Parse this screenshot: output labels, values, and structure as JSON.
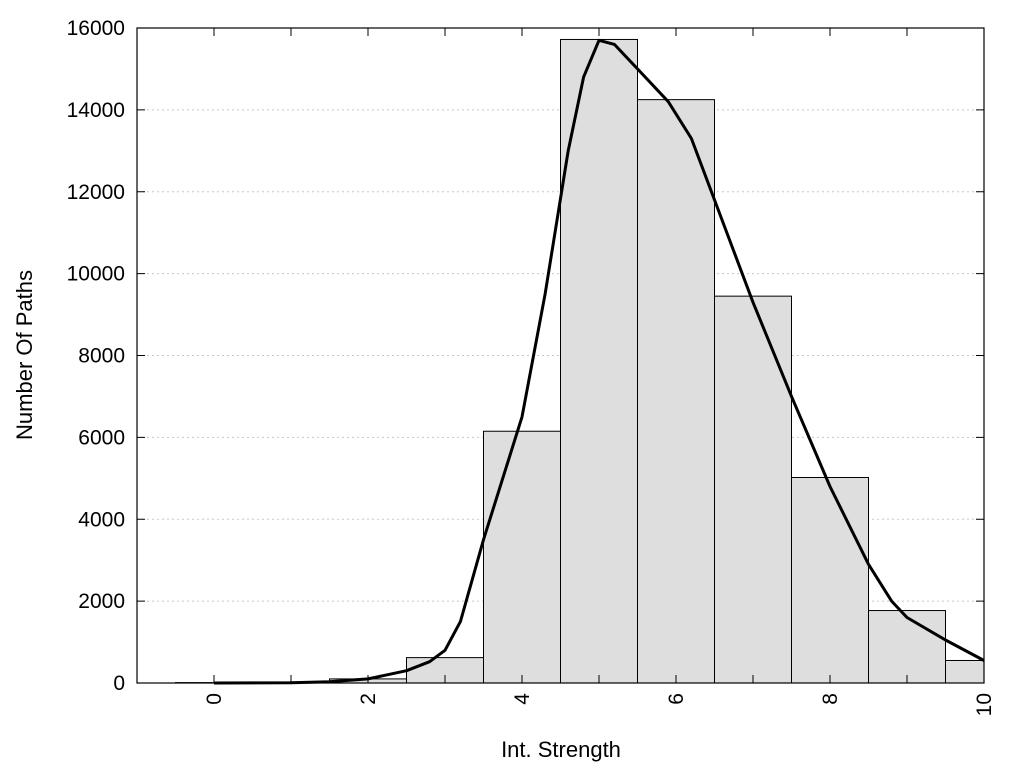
{
  "chart_data": {
    "type": "bar",
    "title": "",
    "xlabel": "Int. Strength",
    "ylabel": "Number Of Paths",
    "xlim": [
      -1,
      10
    ],
    "ylim": [
      0,
      16000
    ],
    "x_ticks": [
      0,
      2,
      4,
      6,
      8,
      10
    ],
    "y_ticks": [
      0,
      2000,
      4000,
      6000,
      8000,
      10000,
      12000,
      14000,
      16000
    ],
    "grid": "horizontal dotted",
    "bar_color": "#dedede",
    "bars": [
      {
        "x": 0,
        "value": 10
      },
      {
        "x": 1,
        "value": 20
      },
      {
        "x": 2,
        "value": 100
      },
      {
        "x": 3,
        "value": 620
      },
      {
        "x": 4,
        "value": 6150
      },
      {
        "x": 5,
        "value": 15720
      },
      {
        "x": 6,
        "value": 14250
      },
      {
        "x": 7,
        "value": 9450
      },
      {
        "x": 8,
        "value": 5020
      },
      {
        "x": 9,
        "value": 1770
      },
      {
        "x": 10,
        "value": 550
      }
    ],
    "fit_curve": {
      "x": [
        0,
        1,
        1.5,
        2,
        2.5,
        2.8,
        3,
        3.2,
        3.5,
        4,
        4.3,
        4.6,
        4.8,
        5,
        5.2,
        5.5,
        5.9,
        6.2,
        6.5,
        7,
        7.5,
        8,
        8.5,
        8.8,
        9,
        9.5,
        10
      ],
      "y": [
        0,
        5,
        30,
        100,
        300,
        520,
        800,
        1500,
        3500,
        6500,
        9500,
        13000,
        14800,
        15700,
        15600,
        15000,
        14200,
        13300,
        11800,
        9300,
        7000,
        4800,
        2900,
        2000,
        1600,
        1050,
        550
      ]
    }
  }
}
